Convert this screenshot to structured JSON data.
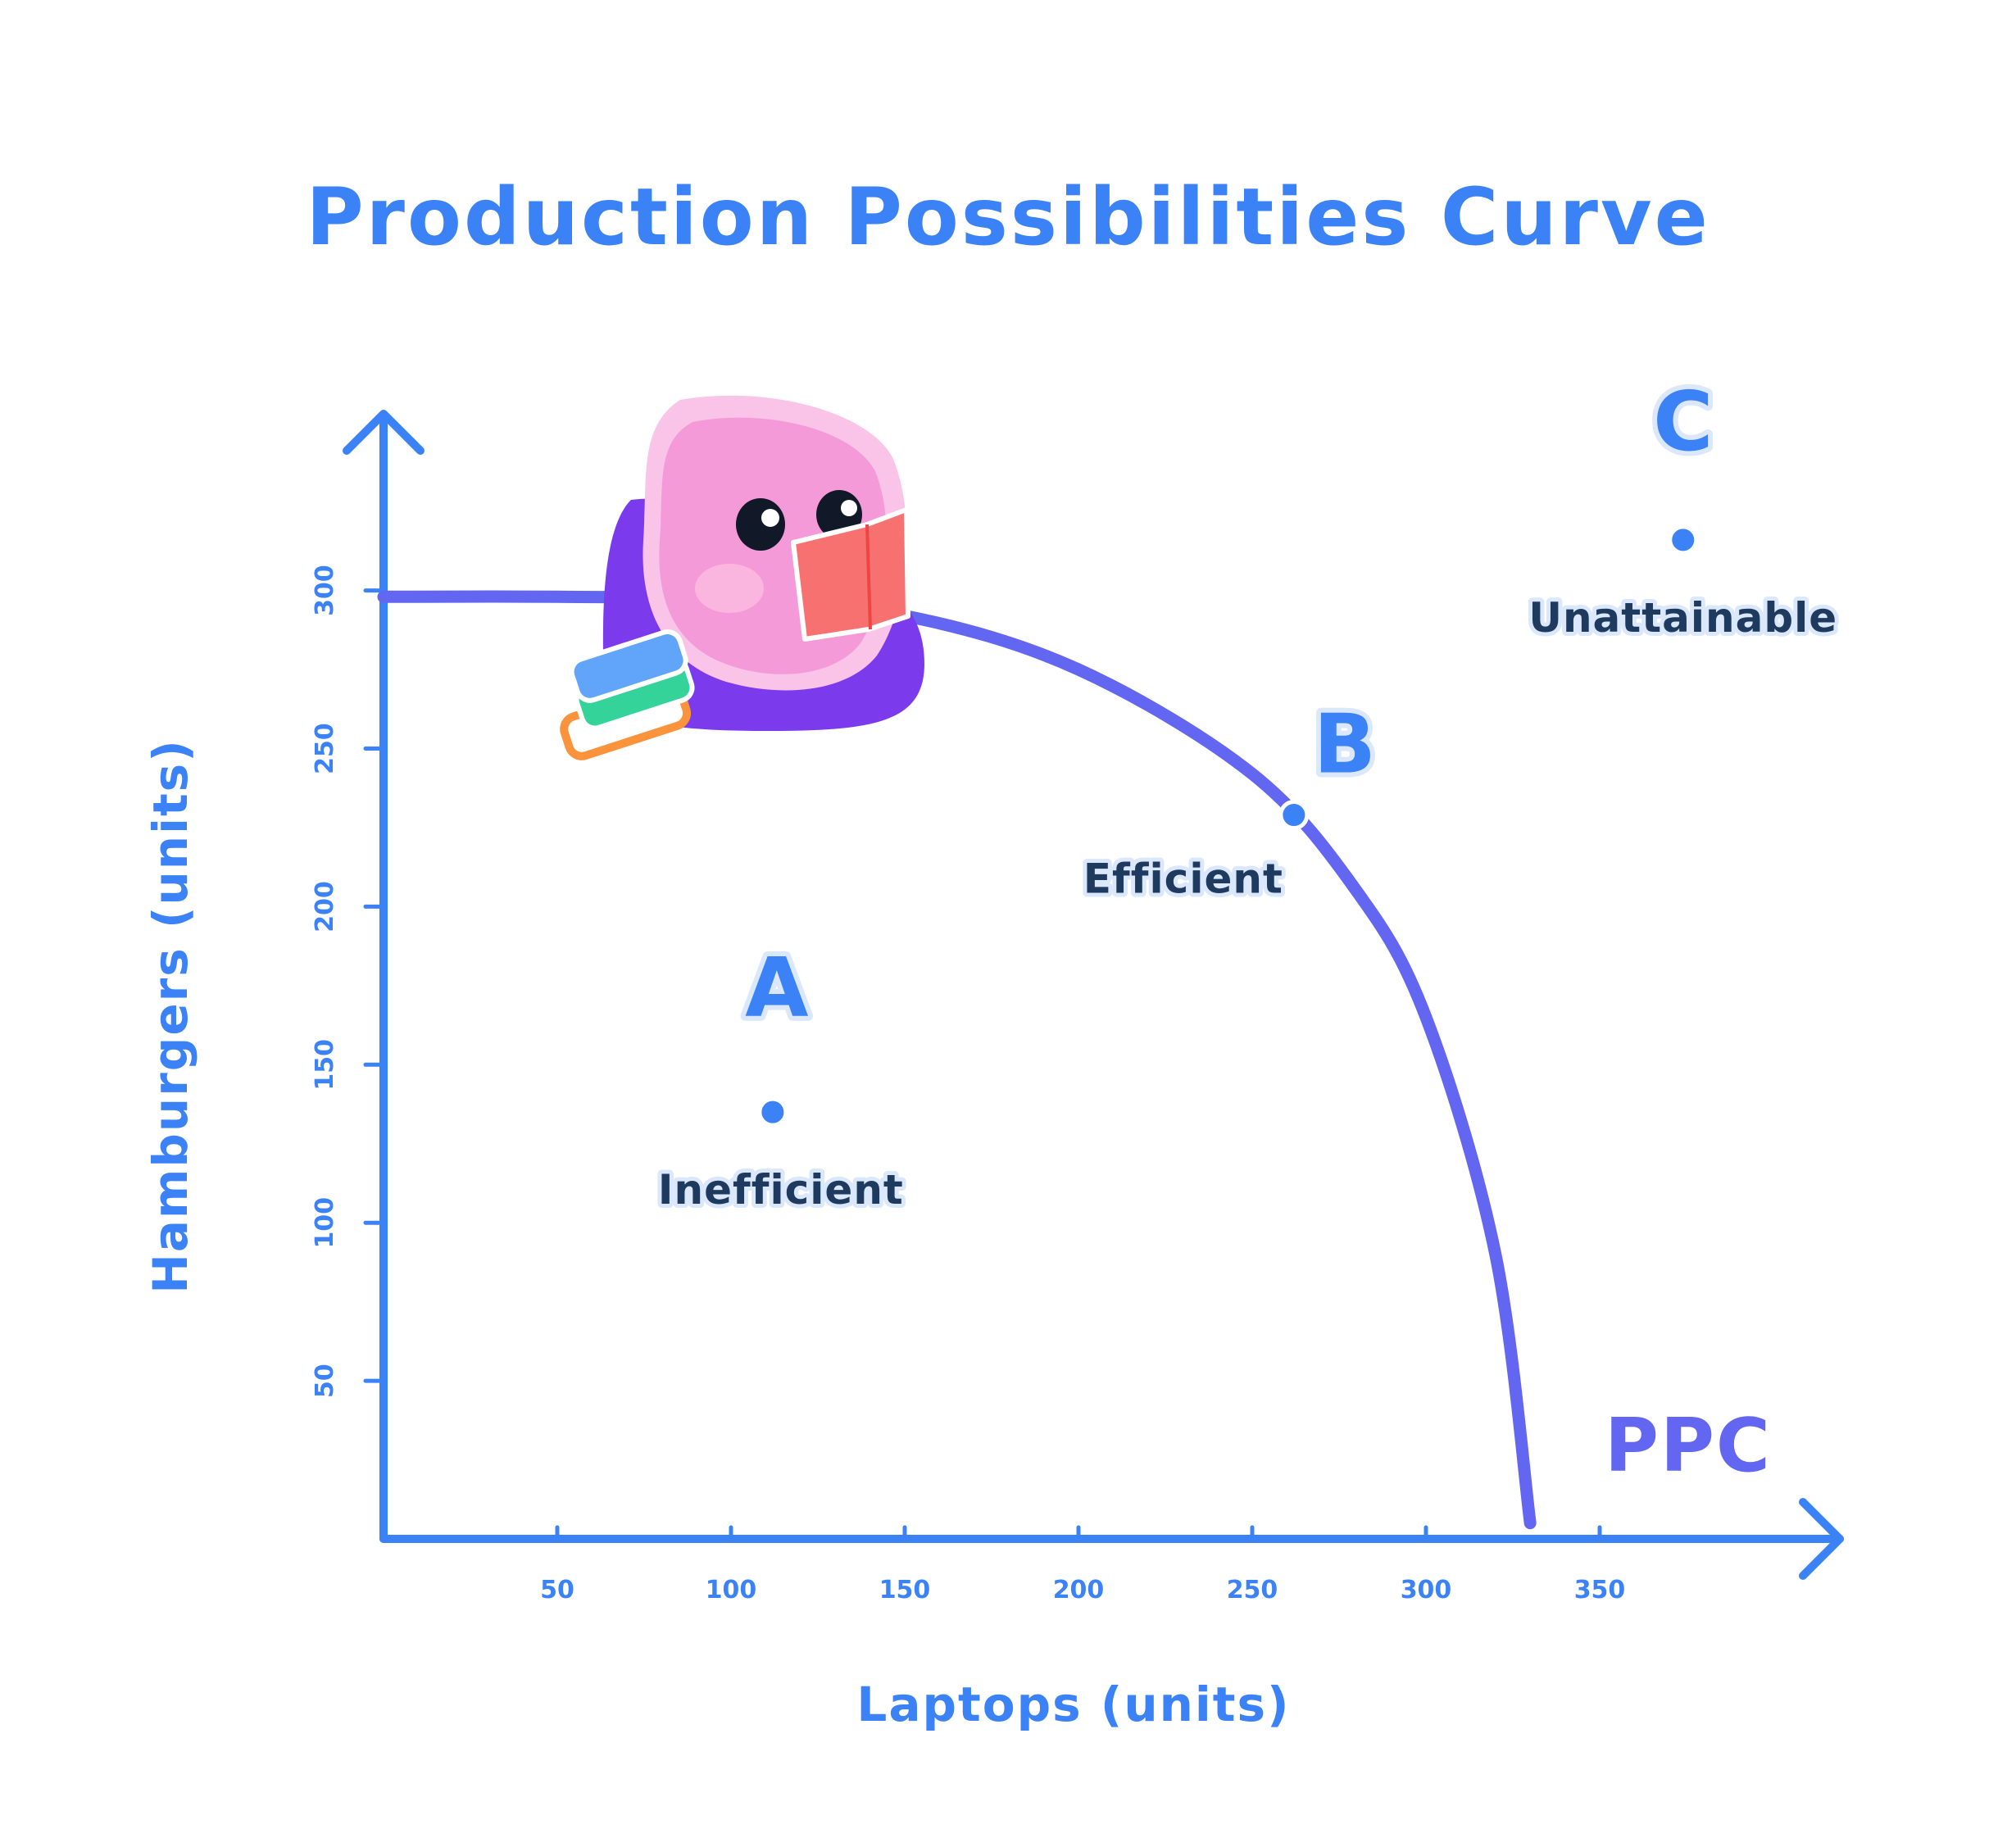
{
  "colors": {
    "axis": "#3b82f6",
    "curve": "#6366f1",
    "point": "#3b82f6",
    "point_border": "#ffffff",
    "desc_text": "#1e3a5f",
    "letter_halo": "#dbe7fb",
    "mascot_body": "#f59ad8",
    "mascot_cushion": "#7c3aed",
    "mascot_book": "#f87171"
  },
  "icons": {
    "mascot": "pink-blob-reading-book-icon",
    "book_stack": "stacked-books-icon"
  },
  "chart_data": {
    "type": "line",
    "title": "Production Possibilities Curve",
    "xlabel": "Laptops (units)",
    "ylabel": "Hamburgers (units)",
    "xlim": [
      0,
      400
    ],
    "ylim": [
      0,
      350
    ],
    "x_ticks": [
      50,
      100,
      150,
      200,
      250,
      300,
      350
    ],
    "y_ticks": [
      50,
      100,
      150,
      200,
      250,
      300
    ],
    "grid": false,
    "series": [
      {
        "name": "PPC",
        "x": [
          0,
          50,
          100,
          150,
          200,
          250,
          280,
          300,
          320,
          330
        ],
        "y": [
          298,
          298,
          297,
          292,
          275,
          242,
          205,
          165,
          90,
          5
        ]
      }
    ],
    "points": [
      {
        "letter": "A",
        "description": "Inefficient",
        "x": 112,
        "y": 135
      },
      {
        "letter": "B",
        "description": "Efficient",
        "x": 262,
        "y": 229
      },
      {
        "letter": "C",
        "description": "Unattainable",
        "x": 374,
        "y": 316
      }
    ]
  }
}
